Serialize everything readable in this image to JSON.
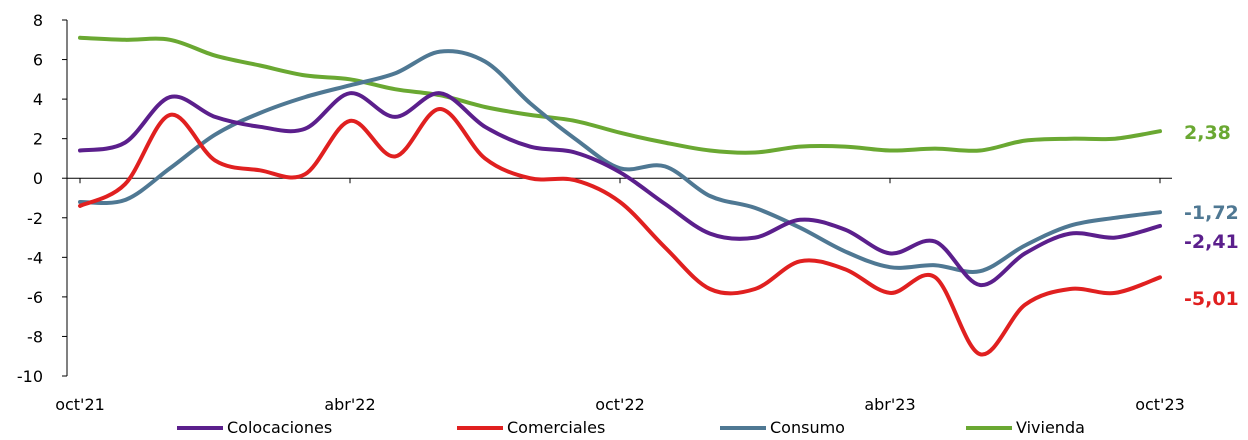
{
  "chart_data": {
    "type": "line",
    "title": "",
    "xlabel": "",
    "ylabel": "",
    "ylim": [
      -10,
      8
    ],
    "yticks": [
      "8",
      "6",
      "4",
      "2",
      "0",
      "-2",
      "-4",
      "-6",
      "-8",
      "-10"
    ],
    "ytick_values": [
      8,
      6,
      4,
      2,
      0,
      -2,
      -4,
      -6,
      -8,
      -10
    ],
    "x_tick_labels": [
      "oct'21",
      "abr'22",
      "oct'22",
      "abr'23",
      "oct'23"
    ],
    "x_tick_index": [
      0,
      6,
      12,
      18,
      24
    ],
    "grid": false,
    "legend_position": "bottom",
    "series": [
      {
        "name": "Colocaciones",
        "color": "#5b1f8c",
        "end_label": "-2,41",
        "values": [
          1.4,
          1.8,
          4.1,
          3.1,
          2.6,
          2.5,
          4.3,
          3.1,
          4.3,
          2.6,
          1.6,
          1.3,
          0.3,
          -1.3,
          -2.8,
          -3.0,
          -2.1,
          -2.6,
          -3.8,
          -3.2,
          -5.4,
          -3.8,
          -2.8,
          -3.0,
          -2.41
        ]
      },
      {
        "name": "Comerciales",
        "color": "#e02020",
        "end_label": "-5,01",
        "values": [
          -1.4,
          -0.3,
          3.2,
          0.9,
          0.4,
          0.2,
          2.9,
          1.1,
          3.5,
          1.0,
          0.0,
          -0.1,
          -1.2,
          -3.5,
          -5.6,
          -5.6,
          -4.2,
          -4.6,
          -5.8,
          -5.0,
          -8.9,
          -6.4,
          -5.6,
          -5.8,
          -5.01
        ]
      },
      {
        "name": "Consumo",
        "color": "#4f7893",
        "end_label": "-1,72",
        "values": [
          -1.2,
          -1.1,
          0.5,
          2.2,
          3.3,
          4.1,
          4.7,
          5.3,
          6.4,
          5.9,
          3.8,
          2.0,
          0.5,
          0.6,
          -0.9,
          -1.5,
          -2.5,
          -3.7,
          -4.5,
          -4.4,
          -4.7,
          -3.4,
          -2.4,
          -2.0,
          -1.72
        ]
      },
      {
        "name": "Vivienda",
        "color": "#6aa832",
        "end_label": "2,38",
        "values": [
          7.1,
          7.0,
          7.0,
          6.2,
          5.7,
          5.2,
          5.0,
          4.5,
          4.2,
          3.6,
          3.2,
          2.9,
          2.3,
          1.8,
          1.4,
          1.3,
          1.6,
          1.6,
          1.4,
          1.5,
          1.4,
          1.9,
          2.0,
          2.0,
          2.38
        ]
      }
    ]
  }
}
